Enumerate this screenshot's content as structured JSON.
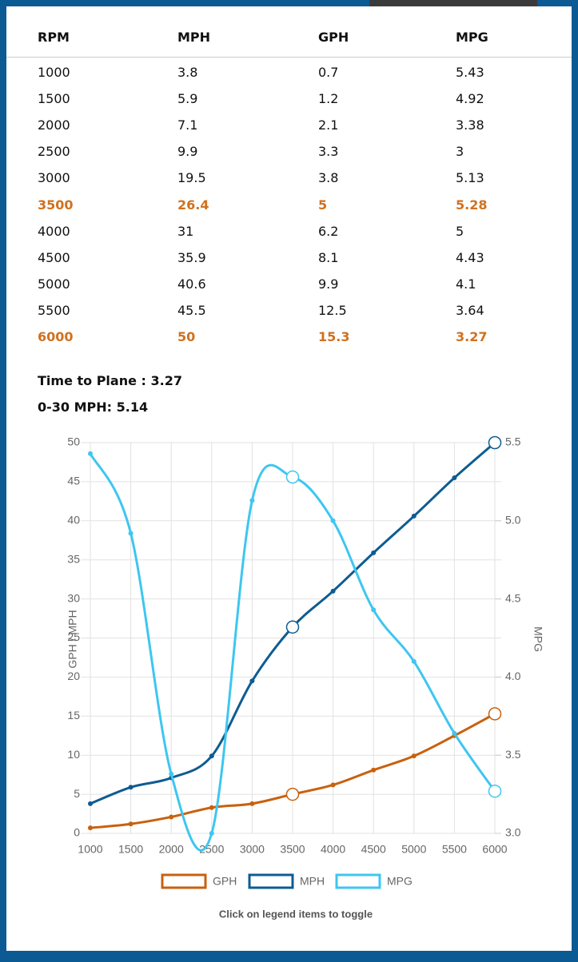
{
  "table": {
    "header": [
      "RPM",
      "MPH",
      "GPH",
      "MPG"
    ],
    "rows": [
      [
        "1000",
        "3.8",
        "0.7",
        "5.43"
      ],
      [
        "1500",
        "5.9",
        "1.2",
        "4.92"
      ],
      [
        "2000",
        "7.1",
        "2.1",
        "3.38"
      ],
      [
        "2500",
        "9.9",
        "3.3",
        "3"
      ],
      [
        "3000",
        "19.5",
        "3.8",
        "5.13"
      ],
      [
        "3500",
        "26.4",
        "5",
        "5.28"
      ],
      [
        "4000",
        "31",
        "6.2",
        "5"
      ],
      [
        "4500",
        "35.9",
        "8.1",
        "4.43"
      ],
      [
        "5000",
        "40.6",
        "9.9",
        "4.1"
      ],
      [
        "5500",
        "45.5",
        "12.5",
        "3.64"
      ],
      [
        "6000",
        "50",
        "15.3",
        "3.27"
      ]
    ]
  },
  "notes": [
    "Time to Plane : 3.27",
    "0-30 MPH: 5.14"
  ],
  "chart_data": {
    "type": "line",
    "ylabel": "GPH / MPH",
    "y2label": "MPG",
    "x": [
      1000,
      1500,
      2000,
      2500,
      3000,
      3500,
      4000,
      4500,
      5000,
      5500,
      6000
    ],
    "xlim": [
      1000,
      6000
    ],
    "xticks": [
      1000,
      1500,
      2000,
      2500,
      3000,
      3500,
      4000,
      4500,
      5000,
      5500,
      6000
    ],
    "ylim": [
      0,
      50
    ],
    "yticks": [
      0,
      5,
      10,
      15,
      20,
      25,
      30,
      35,
      40,
      45,
      50
    ],
    "y2lim": [
      3,
      5.5
    ],
    "y2ticks": [
      {
        "value": 3,
        "label": "3.0"
      },
      3.5,
      {
        "value": 4,
        "label": "4.0"
      },
      4.5,
      {
        "value": 5,
        "label": "5.0"
      },
      5.5
    ],
    "grid": true,
    "series": [
      {
        "name": "GPH",
        "color": "#c8610e",
        "values": [
          0.7,
          1.2,
          2.1,
          3.3,
          3.8,
          5,
          6.2,
          8.1,
          9.9,
          12.5,
          15.3
        ]
      },
      {
        "name": "MPH",
        "color": "#0d5c91",
        "values": [
          3.8,
          5.9,
          7.1,
          9.9,
          19.5,
          26.4,
          31,
          35.9,
          40.6,
          45.5,
          50
        ]
      },
      {
        "name": "MPG",
        "color": "#3ec6f0",
        "axis": "y2",
        "values": [
          5.43,
          4.92,
          3.38,
          3,
          5.13,
          5.28,
          5,
          4.43,
          4.1,
          3.64,
          3.27
        ]
      }
    ]
  },
  "hint": "Click on legend items to toggle"
}
